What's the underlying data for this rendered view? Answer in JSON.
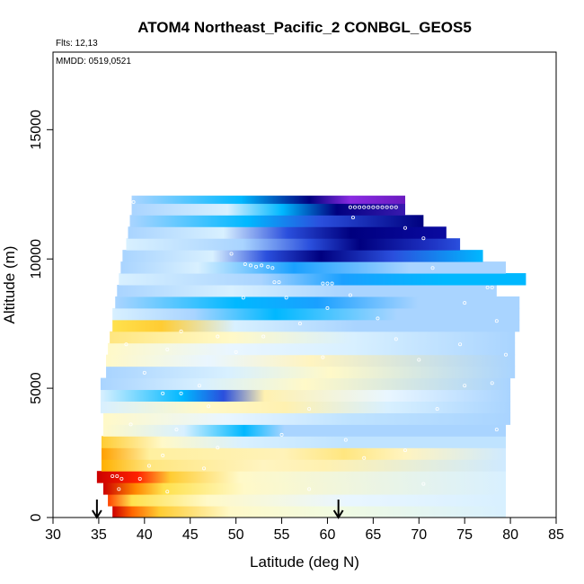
{
  "chart_data": {
    "type": "heatmap",
    "title": "ATOM4 Northeast_Pacific_2 CONBGL_GEOS5",
    "annotations": [
      "Flts: 12,13",
      "MMDD: 0519,0521"
    ],
    "xlabel": "Latitude (deg N)",
    "ylabel": "Altitude (m)",
    "xlim": [
      30,
      85
    ],
    "ylim": [
      0,
      18000
    ],
    "xticks": [
      "30",
      "35",
      "40",
      "45",
      "50",
      "55",
      "60",
      "65",
      "70",
      "75",
      "80",
      "85"
    ],
    "yticks": [
      "0",
      "5000",
      "10000",
      "15000"
    ],
    "arrows_at_latitude": [
      34.8,
      61.2
    ],
    "colors": {
      "dark_red": "#cc0000",
      "red": "#ff2200",
      "orange": "#ff9900",
      "yellow": "#ffe14d",
      "pale_yellow": "#fff9c8",
      "pale_blue": "#d8f0ff",
      "light_blue": "#a9d4ff",
      "cyan": "#00b8ff",
      "blue": "#2a4fdd",
      "dark_blue": "#00007f",
      "purple": "#8a2be2"
    },
    "layers": [
      {
        "alt": [
          0,
          450
        ],
        "lat": [
          36.5,
          79.5
        ],
        "stops": [
          [
            0,
            "#cc0000"
          ],
          [
            0.05,
            "#ff6600"
          ],
          [
            0.12,
            "#ffcc33"
          ],
          [
            0.3,
            "#fff9c8"
          ],
          [
            0.55,
            "#f2fbe0"
          ],
          [
            1,
            "#d8f0ff"
          ]
        ]
      },
      {
        "alt": [
          450,
          900
        ],
        "lat": [
          36.0,
          79.5
        ],
        "stops": [
          [
            0,
            "#ff4400"
          ],
          [
            0.06,
            "#ffe14d"
          ],
          [
            0.25,
            "#fff9c8"
          ],
          [
            0.6,
            "#e9f6ff"
          ],
          [
            1,
            "#d8f0ff"
          ]
        ]
      },
      {
        "alt": [
          900,
          1350
        ],
        "lat": [
          35.5,
          79.5
        ],
        "stops": [
          [
            0,
            "#cc0000"
          ],
          [
            0.08,
            "#ff8800"
          ],
          [
            0.15,
            "#ffe14d"
          ],
          [
            0.35,
            "#fff9c8"
          ],
          [
            1,
            "#d8f0ff"
          ]
        ]
      },
      {
        "alt": [
          1350,
          1800
        ],
        "lat": [
          34.8,
          79.5
        ],
        "stops": [
          [
            0,
            "#cc0000"
          ],
          [
            0.1,
            "#ff2200"
          ],
          [
            0.18,
            "#ffcc33"
          ],
          [
            0.35,
            "#fff9c8"
          ],
          [
            1,
            "#d8f0ff"
          ]
        ]
      },
      {
        "alt": [
          1800,
          2250
        ],
        "lat": [
          35.3,
          79.5
        ],
        "stops": [
          [
            0,
            "#ffb000"
          ],
          [
            0.12,
            "#ffe680"
          ],
          [
            0.4,
            "#fff4c0"
          ],
          [
            0.55,
            "#fff1b0"
          ],
          [
            1,
            "#cfeaff"
          ]
        ]
      },
      {
        "alt": [
          2250,
          2700
        ],
        "lat": [
          35.3,
          79.5
        ],
        "stops": [
          [
            0,
            "#ffa000"
          ],
          [
            0.12,
            "#fff0a0"
          ],
          [
            0.45,
            "#fff2b8"
          ],
          [
            0.6,
            "#ffe680"
          ],
          [
            0.75,
            "#fff4c0"
          ],
          [
            1,
            "#cfeaff"
          ]
        ]
      },
      {
        "alt": [
          2700,
          3150
        ],
        "lat": [
          35.3,
          79.5
        ],
        "stops": [
          [
            0,
            "#ffcc33"
          ],
          [
            0.15,
            "#fff9c8"
          ],
          [
            0.35,
            "#d8f0ff"
          ],
          [
            0.6,
            "#bfe3ff"
          ],
          [
            1,
            "#bfe3ff"
          ]
        ]
      },
      {
        "alt": [
          3150,
          3600
        ],
        "lat": [
          35.5,
          79.5
        ],
        "stops": [
          [
            0,
            "#fff9c8"
          ],
          [
            0.2,
            "#d8f0ff"
          ],
          [
            0.35,
            "#00b8ff"
          ],
          [
            0.45,
            "#a9d4ff"
          ],
          [
            1,
            "#a9d4ff"
          ]
        ]
      },
      {
        "alt": [
          3600,
          4050
        ],
        "lat": [
          35.5,
          80.0
        ],
        "stops": [
          [
            0,
            "#fff9c8"
          ],
          [
            0.3,
            "#e9f6ff"
          ],
          [
            0.6,
            "#bfe3ff"
          ],
          [
            1,
            "#a9d4ff"
          ]
        ]
      },
      {
        "alt": [
          4050,
          4500
        ],
        "lat": [
          35.2,
          80.0
        ],
        "stops": [
          [
            0,
            "#d8f0ff"
          ],
          [
            0.25,
            "#fff9c8"
          ],
          [
            0.45,
            "#fff1b0"
          ],
          [
            0.7,
            "#d8f0ff"
          ],
          [
            1,
            "#a9d4ff"
          ]
        ]
      },
      {
        "alt": [
          4500,
          4950
        ],
        "lat": [
          35.2,
          80.0
        ],
        "stops": [
          [
            0,
            "#d8f0ff"
          ],
          [
            0.2,
            "#00b8ff"
          ],
          [
            0.3,
            "#2a4fdd"
          ],
          [
            0.4,
            "#fff1b0"
          ],
          [
            0.7,
            "#e9f6ff"
          ],
          [
            1,
            "#a9d4ff"
          ]
        ]
      },
      {
        "alt": [
          4950,
          5400
        ],
        "lat": [
          35.2,
          80.0
        ],
        "stops": [
          [
            0,
            "#a9d4ff"
          ],
          [
            0.25,
            "#d8f0ff"
          ],
          [
            0.5,
            "#fff9c8"
          ],
          [
            1,
            "#a9d4ff"
          ]
        ]
      },
      {
        "alt": [
          5400,
          5850
        ],
        "lat": [
          35.8,
          80.5
        ],
        "stops": [
          [
            0,
            "#a9d4ff"
          ],
          [
            0.3,
            "#d8f0ff"
          ],
          [
            0.55,
            "#fff9c8"
          ],
          [
            1,
            "#a9d4ff"
          ]
        ]
      },
      {
        "alt": [
          5850,
          6300
        ],
        "lat": [
          35.8,
          80.5
        ],
        "stops": [
          [
            0,
            "#fff9c8"
          ],
          [
            0.25,
            "#e9f6ff"
          ],
          [
            0.5,
            "#fff4c0"
          ],
          [
            1,
            "#a9d4ff"
          ]
        ]
      },
      {
        "alt": [
          6300,
          6750
        ],
        "lat": [
          36.0,
          80.5
        ],
        "stops": [
          [
            0,
            "#fff9c8"
          ],
          [
            0.3,
            "#e9f6ff"
          ],
          [
            0.6,
            "#d8f0ff"
          ],
          [
            1,
            "#a9d4ff"
          ]
        ]
      },
      {
        "alt": [
          6750,
          7200
        ],
        "lat": [
          36.2,
          80.5
        ],
        "stops": [
          [
            0,
            "#ffe680"
          ],
          [
            0.3,
            "#fff9c8"
          ],
          [
            0.6,
            "#d8f0ff"
          ],
          [
            1,
            "#a9d4ff"
          ]
        ]
      },
      {
        "alt": [
          7200,
          7650
        ],
        "lat": [
          36.5,
          81.0
        ],
        "stops": [
          [
            0,
            "#ffe14d"
          ],
          [
            0.12,
            "#ffcc33"
          ],
          [
            0.3,
            "#d8f0ff"
          ],
          [
            0.6,
            "#a9d4ff"
          ],
          [
            1,
            "#a9d4ff"
          ]
        ]
      },
      {
        "alt": [
          7650,
          8100
        ],
        "lat": [
          36.5,
          81.0
        ],
        "stops": [
          [
            0,
            "#d8f0ff"
          ],
          [
            0.2,
            "#a9d4ff"
          ],
          [
            0.4,
            "#00b8ff"
          ],
          [
            0.7,
            "#a9d4ff"
          ],
          [
            1,
            "#a9d4ff"
          ]
        ]
      },
      {
        "alt": [
          8100,
          8550
        ],
        "lat": [
          36.8,
          81.0
        ],
        "stops": [
          [
            0,
            "#a9d4ff"
          ],
          [
            0.3,
            "#00b8ff"
          ],
          [
            0.5,
            "#1aa0ff"
          ],
          [
            0.75,
            "#a9d4ff"
          ],
          [
            1,
            "#a9d4ff"
          ]
        ]
      },
      {
        "alt": [
          8550,
          9000
        ],
        "lat": [
          37.0,
          78.5
        ],
        "stops": [
          [
            0,
            "#a9d4ff"
          ],
          [
            0.3,
            "#d8f0ff"
          ],
          [
            0.6,
            "#a9d4ff"
          ],
          [
            1,
            "#a9d4ff"
          ]
        ]
      },
      {
        "alt": [
          9000,
          9450
        ],
        "lat": [
          37.2,
          81.7
        ],
        "stops": [
          [
            0,
            "#d8f0ff"
          ],
          [
            0.35,
            "#a9d4ff"
          ],
          [
            0.55,
            "#1aa0ff"
          ],
          [
            0.8,
            "#00b8ff"
          ],
          [
            1,
            "#00b8ff"
          ]
        ]
      },
      {
        "alt": [
          9450,
          9900
        ],
        "lat": [
          37.4,
          79.5
        ],
        "stops": [
          [
            0,
            "#a9d4ff"
          ],
          [
            0.2,
            "#d8f0ff"
          ],
          [
            0.45,
            "#1aa0ff"
          ],
          [
            0.75,
            "#a9d4ff"
          ],
          [
            1,
            "#a9d4ff"
          ]
        ]
      },
      {
        "alt": [
          9900,
          10350
        ],
        "lat": [
          37.6,
          77.0
        ],
        "stops": [
          [
            0,
            "#a9d4ff"
          ],
          [
            0.25,
            "#d8f0ff"
          ],
          [
            0.4,
            "#2a4fdd"
          ],
          [
            0.55,
            "#00007f"
          ],
          [
            0.75,
            "#2a4fdd"
          ],
          [
            1,
            "#00b8ff"
          ]
        ]
      },
      {
        "alt": [
          10350,
          10800
        ],
        "lat": [
          38.0,
          74.5
        ],
        "stops": [
          [
            0,
            "#d8f0ff"
          ],
          [
            0.35,
            "#a9d4ff"
          ],
          [
            0.55,
            "#2a4fdd"
          ],
          [
            0.7,
            "#00007f"
          ],
          [
            0.9,
            "#1c2fbf"
          ],
          [
            1,
            "#2a4fdd"
          ]
        ]
      },
      {
        "alt": [
          10800,
          11250
        ],
        "lat": [
          38.2,
          73.0
        ],
        "stops": [
          [
            0,
            "#a9d4ff"
          ],
          [
            0.3,
            "#d8f0ff"
          ],
          [
            0.5,
            "#2a4fdd"
          ],
          [
            0.7,
            "#00007f"
          ],
          [
            1,
            "#0a0aa0"
          ]
        ]
      },
      {
        "alt": [
          11250,
          11700
        ],
        "lat": [
          38.4,
          70.5
        ],
        "stops": [
          [
            0,
            "#a9d4ff"
          ],
          [
            0.4,
            "#00b8ff"
          ],
          [
            0.65,
            "#2a4fdd"
          ],
          [
            1,
            "#00007f"
          ]
        ]
      },
      {
        "alt": [
          11700,
          12150
        ],
        "lat": [
          38.6,
          68.5
        ],
        "stops": [
          [
            0,
            "#a9d4ff"
          ],
          [
            0.35,
            "#d8f0ff"
          ],
          [
            0.55,
            "#00b8ff"
          ],
          [
            0.75,
            "#00007f"
          ],
          [
            1,
            "#3a1ab0"
          ]
        ]
      },
      {
        "alt": [
          12150,
          12450
        ],
        "lat": [
          38.6,
          68.5
        ],
        "stops": [
          [
            0,
            "#a9d4ff"
          ],
          [
            0.4,
            "#00b8ff"
          ],
          [
            0.65,
            "#00007f"
          ],
          [
            0.8,
            "#8a2be2"
          ],
          [
            1,
            "#6a1ac0"
          ]
        ]
      }
    ],
    "points": [
      [
        38.8,
        12200
      ],
      [
        62.5,
        12000
      ],
      [
        63.0,
        12000
      ],
      [
        63.5,
        12000
      ],
      [
        64.0,
        12000
      ],
      [
        64.5,
        12000
      ],
      [
        65.0,
        12000
      ],
      [
        65.5,
        12000
      ],
      [
        66.0,
        12000
      ],
      [
        66.5,
        12000
      ],
      [
        67.0,
        12000
      ],
      [
        67.5,
        12000
      ],
      [
        62.8,
        11600
      ],
      [
        68.5,
        11200
      ],
      [
        70.5,
        10800
      ],
      [
        51.0,
        9800
      ],
      [
        51.6,
        9750
      ],
      [
        52.2,
        9700
      ],
      [
        52.8,
        9750
      ],
      [
        53.5,
        9700
      ],
      [
        54.0,
        9650
      ],
      [
        49.5,
        10200
      ],
      [
        71.5,
        9650
      ],
      [
        82.0,
        9400
      ],
      [
        54.2,
        9100
      ],
      [
        54.7,
        9100
      ],
      [
        59.5,
        9050
      ],
      [
        60.0,
        9050
      ],
      [
        60.5,
        9050
      ],
      [
        77.5,
        8900
      ],
      [
        78.0,
        8900
      ],
      [
        50.8,
        8500
      ],
      [
        55.5,
        8500
      ],
      [
        62.5,
        8600
      ],
      [
        75.0,
        8300
      ],
      [
        60.0,
        8100
      ],
      [
        65.5,
        7700
      ],
      [
        57.0,
        7500
      ],
      [
        78.5,
        7600
      ],
      [
        44.0,
        7200
      ],
      [
        48.0,
        7000
      ],
      [
        53.0,
        7000
      ],
      [
        67.5,
        6900
      ],
      [
        74.5,
        6700
      ],
      [
        38.0,
        6700
      ],
      [
        42.5,
        6500
      ],
      [
        50.0,
        6400
      ],
      [
        59.5,
        6200
      ],
      [
        79.5,
        6300
      ],
      [
        70.0,
        6100
      ],
      [
        40.0,
        5600
      ],
      [
        46.0,
        5100
      ],
      [
        75.0,
        5100
      ],
      [
        78.0,
        5200
      ],
      [
        42.0,
        4800
      ],
      [
        44.0,
        4800
      ],
      [
        47.0,
        4300
      ],
      [
        58.0,
        4200
      ],
      [
        72.0,
        4200
      ],
      [
        38.5,
        3600
      ],
      [
        43.5,
        3400
      ],
      [
        78.5,
        3400
      ],
      [
        55.0,
        3200
      ],
      [
        62.0,
        3000
      ],
      [
        48.0,
        2700
      ],
      [
        68.5,
        2600
      ],
      [
        42.0,
        2400
      ],
      [
        64.0,
        2300
      ],
      [
        46.5,
        1900
      ],
      [
        40.5,
        2000
      ],
      [
        39.5,
        1500
      ],
      [
        36.5,
        1600
      ],
      [
        37.0,
        1600
      ],
      [
        37.5,
        1500
      ],
      [
        70.5,
        1300
      ],
      [
        42.5,
        1000
      ],
      [
        58.0,
        1100
      ],
      [
        37.2,
        1100
      ]
    ]
  }
}
